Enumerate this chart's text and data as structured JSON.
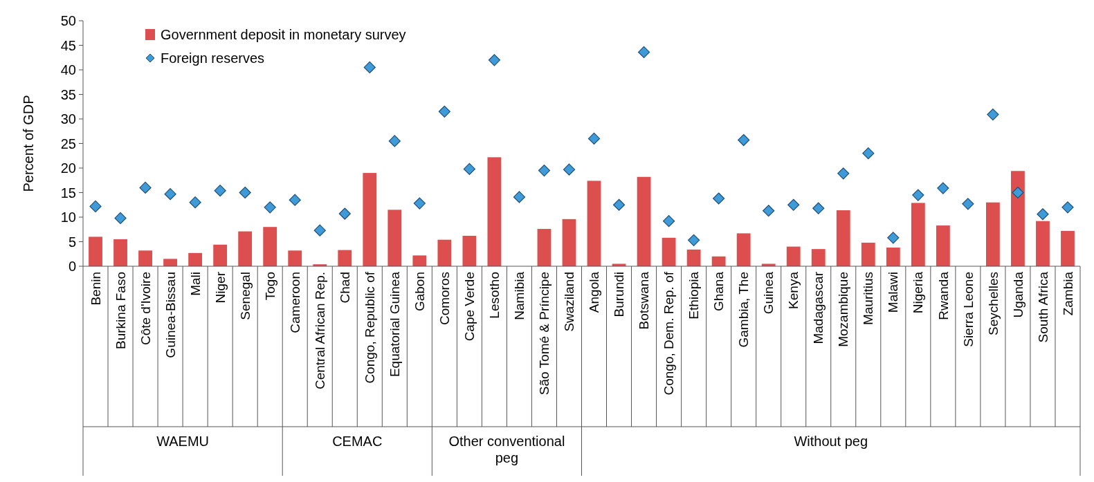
{
  "chart_data": {
    "type": "bar",
    "ylabel": "Percent of GDP",
    "ylim": [
      0,
      50
    ],
    "yticks": [
      0,
      5,
      10,
      15,
      20,
      25,
      30,
      35,
      40,
      45,
      50
    ],
    "grid": false,
    "legend": "top left",
    "marker": "diamond",
    "categories": [
      "Benin",
      "Burkina Faso",
      "Côte d'Ivoire",
      "Guinea-Bissau",
      "Mali",
      "Niger",
      "Senegal",
      "Togo",
      "Cameroon",
      "Central African Rep.",
      "Chad",
      "Congo, Republic of",
      "Equatorial Guinea",
      "Gabon",
      "Comoros",
      "Cape Verde",
      "Lesotho",
      "Namibia",
      "São Tomé & Príncipe",
      "Swaziland",
      "Angola",
      "Burundi",
      "Botswana",
      "Congo, Dem. Rep. of",
      "Ethiopia",
      "Ghana",
      "Gambia, The",
      "Guinea",
      "Kenya",
      "Madagascar",
      "Mozambique",
      "Mauritius",
      "Malawi",
      "Nigeria",
      "Rwanda",
      "Sierra Leone",
      "Seychelles",
      "Uganda",
      "South Africa",
      "Zambia"
    ],
    "annotations": [
      "WAEMU",
      "CEMAC",
      "Other conventional peg",
      "Without peg"
    ],
    "series": [
      {
        "name": "Government deposit in monetary survey",
        "color": "#dd4f4f",
        "values": [
          6.0,
          5.5,
          3.2,
          1.5,
          2.7,
          4.4,
          7.1,
          8.0,
          3.2,
          0.4,
          3.3,
          19.0,
          11.5,
          2.2,
          5.4,
          6.2,
          22.2,
          null,
          7.6,
          9.6,
          17.4,
          0.5,
          18.2,
          5.8,
          3.4,
          2.0,
          6.7,
          0.5,
          4.0,
          3.5,
          11.4,
          4.8,
          3.8,
          12.9,
          8.3,
          null,
          13.0,
          19.4,
          9.2,
          7.2
        ]
      },
      {
        "name": "Foreign reserves",
        "type": "scatter",
        "color": "#3f9ad8",
        "values": [
          12.2,
          9.8,
          16.0,
          14.7,
          13.0,
          15.4,
          15.0,
          12.0,
          13.5,
          7.3,
          10.7,
          40.5,
          25.5,
          12.8,
          31.5,
          19.8,
          42.0,
          14.1,
          19.5,
          19.7,
          26.0,
          12.5,
          43.6,
          9.2,
          5.3,
          13.8,
          25.7,
          11.3,
          12.5,
          11.8,
          18.9,
          23.0,
          5.8,
          14.5,
          15.9,
          12.7,
          30.9,
          15.0,
          10.6,
          12.0
        ]
      }
    ]
  }
}
